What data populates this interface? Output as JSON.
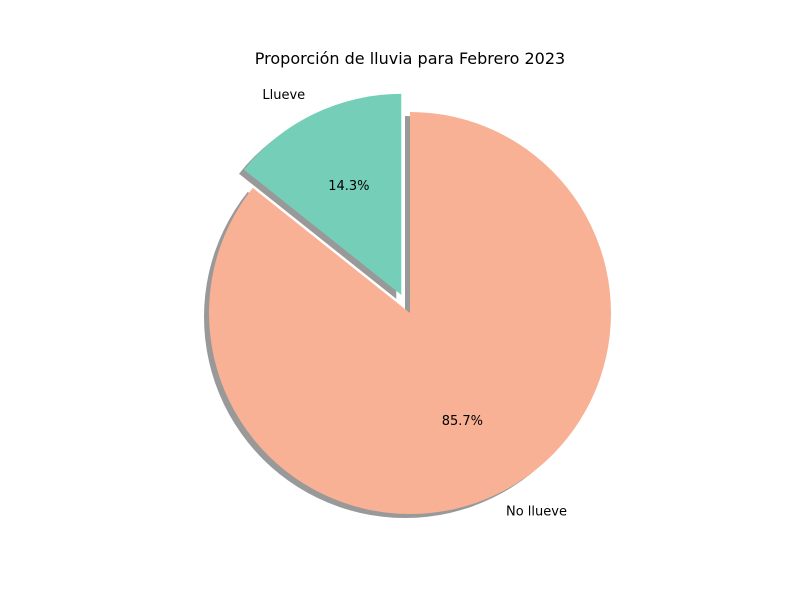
{
  "chart_data": {
    "type": "pie",
    "title": "Proporción de lluvia para Febrero 2023",
    "slices": [
      {
        "label": "Llueve",
        "value": 14.3,
        "pct_label": "14.3%",
        "color": "#75cfb8",
        "exploded": true
      },
      {
        "label": "No llueve",
        "value": 85.7,
        "pct_label": "85.7%",
        "color": "#f8b195",
        "exploded": false
      }
    ],
    "start_angle": "top",
    "direction": "counterclockwise",
    "shadow": true,
    "shadow_color": "#999999"
  }
}
